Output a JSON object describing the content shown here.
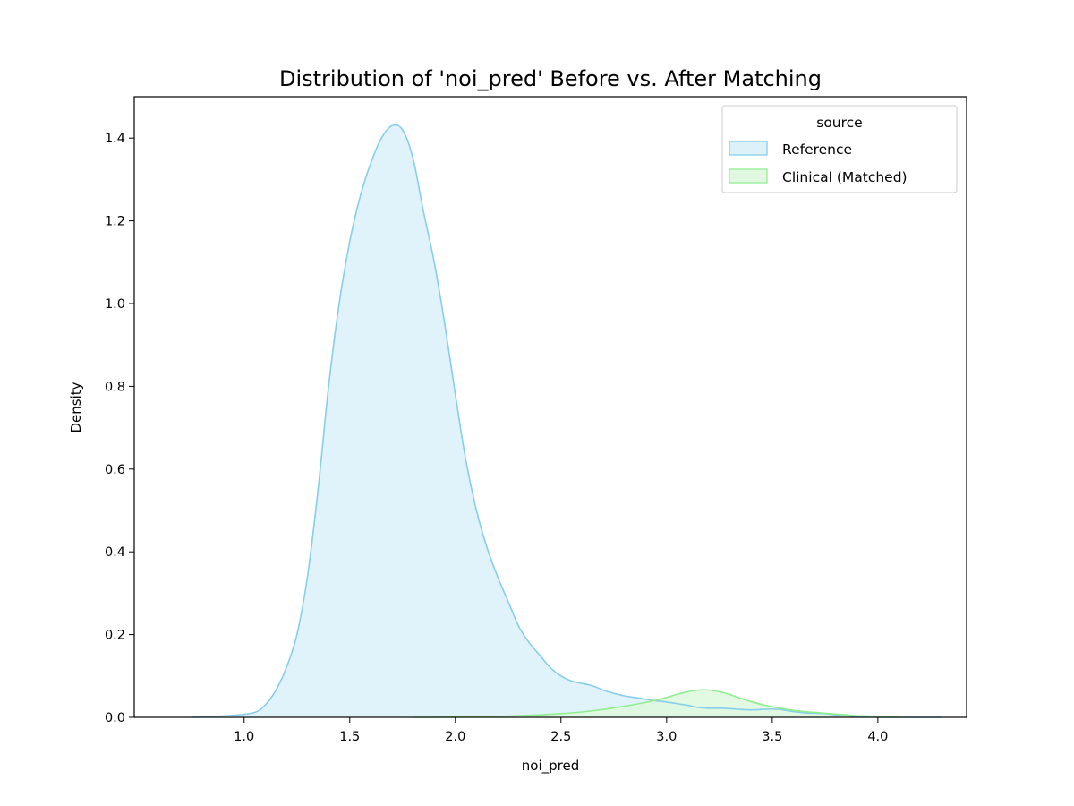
{
  "chart_data": {
    "type": "area",
    "title": "Distribution of 'noi_pred' Before vs. After Matching",
    "xlabel": "noi_pred",
    "ylabel": "Density",
    "xlim": [
      0.48,
      4.42
    ],
    "ylim": [
      0,
      1.5
    ],
    "xticks": [
      1.0,
      1.5,
      2.0,
      2.5,
      3.0,
      3.5,
      4.0
    ],
    "xtick_labels": [
      "1.0",
      "1.5",
      "2.0",
      "2.5",
      "3.0",
      "3.5",
      "4.0"
    ],
    "yticks": [
      0.0,
      0.2,
      0.4,
      0.6,
      0.8,
      1.0,
      1.2,
      1.4
    ],
    "ytick_labels": [
      "0.0",
      "0.2",
      "0.4",
      "0.6",
      "0.8",
      "1.0",
      "1.2",
      "1.4"
    ],
    "grid": false,
    "legend": {
      "title": "source",
      "placement": "top-right",
      "entries": [
        "Reference",
        "Clinical (Matched)"
      ]
    },
    "series": [
      {
        "name": "Reference",
        "color": "#87ceeb",
        "fill": "#ddf1f9",
        "x": [
          0.75,
          0.85,
          0.95,
          1.05,
          1.1,
          1.15,
          1.2,
          1.25,
          1.3,
          1.35,
          1.4,
          1.45,
          1.5,
          1.55,
          1.6,
          1.65,
          1.7,
          1.75,
          1.8,
          1.85,
          1.9,
          1.95,
          2.0,
          2.05,
          2.1,
          2.15,
          2.2,
          2.25,
          2.3,
          2.35,
          2.4,
          2.45,
          2.5,
          2.55,
          2.6,
          2.65,
          2.7,
          2.75,
          2.8,
          2.85,
          2.9,
          2.95,
          3.0,
          3.05,
          3.1,
          3.15,
          3.2,
          3.25,
          3.3,
          3.35,
          3.4,
          3.45,
          3.5,
          3.55,
          3.6,
          3.65,
          3.7,
          3.75,
          3.8,
          3.85,
          3.9,
          3.95,
          4.0,
          4.1,
          4.3
        ],
        "y": [
          0.0,
          0.002,
          0.005,
          0.012,
          0.03,
          0.065,
          0.12,
          0.2,
          0.34,
          0.55,
          0.8,
          1.0,
          1.15,
          1.26,
          1.34,
          1.4,
          1.43,
          1.42,
          1.35,
          1.22,
          1.1,
          0.95,
          0.78,
          0.62,
          0.5,
          0.41,
          0.34,
          0.28,
          0.22,
          0.18,
          0.15,
          0.12,
          0.1,
          0.088,
          0.082,
          0.076,
          0.066,
          0.058,
          0.052,
          0.048,
          0.044,
          0.04,
          0.037,
          0.033,
          0.029,
          0.024,
          0.022,
          0.022,
          0.021,
          0.019,
          0.018,
          0.019,
          0.02,
          0.018,
          0.014,
          0.011,
          0.01,
          0.009,
          0.006,
          0.004,
          0.002,
          0.001,
          0.0005,
          0.0,
          0.0
        ]
      },
      {
        "name": "Clinical (Matched)",
        "color": "#90ee90",
        "fill": "#dff8df",
        "x": [
          1.8,
          2.0,
          2.2,
          2.3,
          2.4,
          2.5,
          2.6,
          2.7,
          2.8,
          2.9,
          3.0,
          3.05,
          3.1,
          3.15,
          3.2,
          3.25,
          3.3,
          3.35,
          3.4,
          3.45,
          3.5,
          3.55,
          3.6,
          3.65,
          3.7,
          3.75,
          3.8,
          3.85,
          3.9,
          3.95,
          4.0,
          4.05,
          4.1
        ],
        "y": [
          0.0,
          0.0005,
          0.002,
          0.004,
          0.006,
          0.009,
          0.013,
          0.019,
          0.027,
          0.036,
          0.048,
          0.056,
          0.062,
          0.066,
          0.066,
          0.062,
          0.055,
          0.046,
          0.038,
          0.031,
          0.026,
          0.021,
          0.017,
          0.014,
          0.012,
          0.01,
          0.008,
          0.006,
          0.004,
          0.003,
          0.002,
          0.001,
          0.0
        ]
      }
    ]
  }
}
